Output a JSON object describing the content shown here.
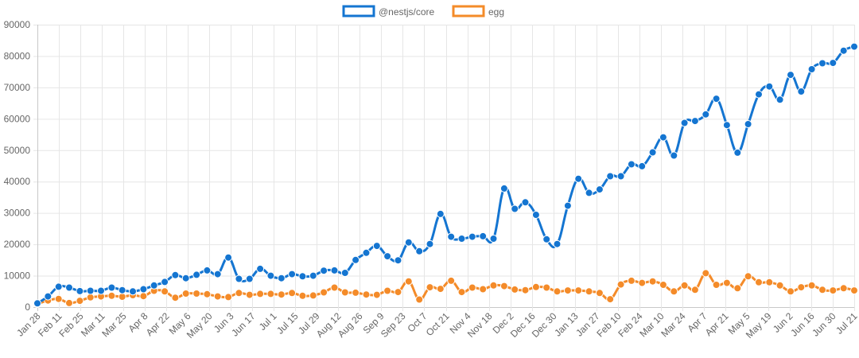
{
  "chart_data": {
    "type": "line",
    "title": "",
    "xlabel": "",
    "ylabel": "",
    "ylim": [
      0,
      90000
    ],
    "yticks": [
      "0",
      "10000",
      "20000",
      "30000",
      "40000",
      "50000",
      "60000",
      "70000",
      "80000",
      "90000"
    ],
    "grid": true,
    "legend_position": "top-center",
    "x_tick_labels": [
      "Jan 28",
      "Feb 11",
      "Feb 25",
      "Mar 11",
      "Mar 25",
      "Apr 8",
      "Apr 22",
      "May 6",
      "May 20",
      "Jun 3",
      "Jun 17",
      "Jul 1",
      "Jul 15",
      "Jul 29",
      "Aug 12",
      "Aug 26",
      "Sep 9",
      "Sep 23",
      "Oct 7",
      "Oct 21",
      "Nov 4",
      "Nov 18",
      "Dec 2",
      "Dec 16",
      "Dec 30",
      "Jan 13",
      "Jan 27",
      "Feb 10",
      "Feb 24",
      "Mar 10",
      "Mar 24",
      "Apr 7",
      "Apr 21",
      "May 5",
      "May 19",
      "Jun 2",
      "Jun 16",
      "Jun 30",
      "Jul 21"
    ],
    "series": [
      {
        "name": "@nestjs/core",
        "color": "#1475d1",
        "values": [
          1200,
          3400,
          6500,
          6200,
          5100,
          5200,
          5200,
          6200,
          5400,
          5000,
          5700,
          6900,
          8000,
          10200,
          9200,
          10300,
          11700,
          10500,
          15800,
          9000,
          9000,
          12200,
          10000,
          9200,
          10500,
          9800,
          10000,
          11600,
          11700,
          10900,
          15000,
          17300,
          19500,
          16200,
          14900,
          20600,
          17800,
          20100,
          29700,
          22400,
          21800,
          22400,
          22600,
          21800,
          37800,
          31300,
          33400,
          29400,
          21600,
          20100,
          32300,
          40900,
          36400,
          37500,
          41700,
          41700,
          45500,
          44900,
          49300,
          54100,
          48300,
          58700,
          59300,
          61400,
          66400,
          58000,
          49200,
          58300,
          67800,
          70300,
          66100,
          74000,
          68700,
          75800,
          77700,
          77800,
          81700,
          83000
        ]
      },
      {
        "name": "egg",
        "color": "#f48b29",
        "values": [
          1000,
          2100,
          2600,
          1300,
          2000,
          3100,
          3400,
          3600,
          3300,
          3800,
          3500,
          5200,
          5000,
          3000,
          4300,
          4300,
          4100,
          3400,
          3200,
          4500,
          3900,
          4200,
          4200,
          4000,
          4500,
          3600,
          3700,
          4700,
          6200,
          4700,
          4600,
          4000,
          3900,
          5200,
          4800,
          8200,
          2400,
          6300,
          5800,
          8400,
          4800,
          6200,
          5700,
          6900,
          6700,
          5600,
          5400,
          6400,
          6200,
          5000,
          5300,
          5300,
          5000,
          4500,
          2500,
          7200,
          8400,
          7700,
          8200,
          7100,
          5000,
          6900,
          5500,
          10800,
          7100,
          7700,
          6000,
          9800,
          7900,
          7900,
          6900,
          5000,
          6300,
          6900,
          5500,
          5300,
          6000,
          5300
        ]
      }
    ]
  }
}
